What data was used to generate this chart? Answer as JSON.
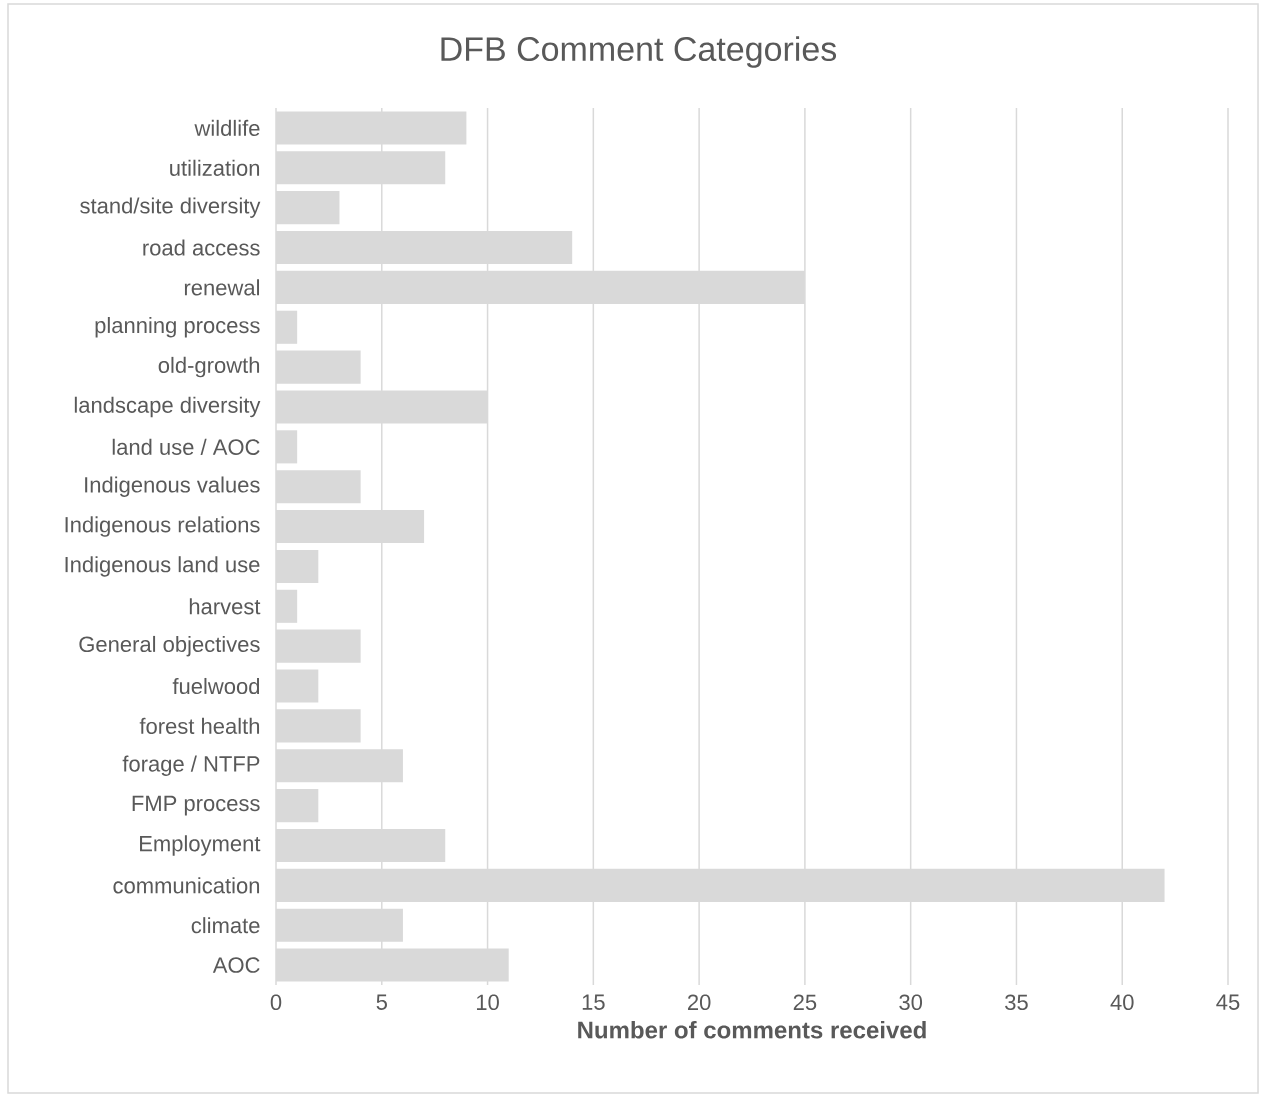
{
  "chart_data": {
    "type": "bar",
    "orientation": "horizontal",
    "title": "DFB Comment Categories",
    "xlabel": "Number of comments received",
    "categories": [
      "wildlife",
      "utilization",
      "stand/site diversity",
      "road access",
      "renewal",
      "planning process",
      "old-growth",
      "landscape diversity",
      "land use / AOC",
      "Indigenous values",
      "Indigenous relations",
      "Indigenous land use",
      "harvest",
      "General objectives",
      "fuelwood",
      "forest health",
      "forage / NTFP",
      "FMP process",
      "Employment",
      "communication",
      "climate",
      "AOC"
    ],
    "values": [
      9,
      8,
      3,
      14,
      25,
      1,
      4,
      10,
      1,
      4,
      7,
      2,
      1,
      4,
      2,
      4,
      6,
      2,
      8,
      42,
      6,
      11
    ],
    "color": "#d9d9d9",
    "xlim": [
      0,
      45
    ],
    "xticks": [
      0,
      5,
      10,
      15,
      20,
      25,
      30,
      35,
      40,
      45
    ],
    "grid": "x"
  }
}
